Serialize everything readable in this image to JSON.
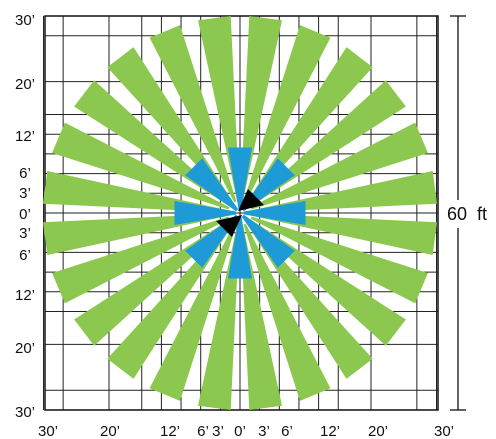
{
  "grid": {
    "x_tick_labels": [
      {
        "label": "30’",
        "offset_ft": -30
      },
      {
        "label": "20’",
        "offset_ft": -20
      },
      {
        "label": "12’",
        "offset_ft": -12
      },
      {
        "label": "6’",
        "offset_ft": -6
      },
      {
        "label": "3’",
        "offset_ft": -3
      },
      {
        "label": "0’",
        "offset_ft": 0
      },
      {
        "label": "3’",
        "offset_ft": 3
      },
      {
        "label": "6’",
        "offset_ft": 6
      },
      {
        "label": "12’",
        "offset_ft": 12
      },
      {
        "label": "20’",
        "offset_ft": 20
      },
      {
        "label": "30’",
        "offset_ft": 30
      }
    ],
    "y_tick_labels": [
      {
        "label": "30’",
        "offset_ft": 30
      },
      {
        "label": "20’",
        "offset_ft": 20
      },
      {
        "label": "12’",
        "offset_ft": 12
      },
      {
        "label": "6’",
        "offset_ft": 6
      },
      {
        "label": "3’",
        "offset_ft": 3
      },
      {
        "label": "0’",
        "offset_ft": 0
      },
      {
        "label": "3’",
        "offset_ft": -3
      },
      {
        "label": "6’",
        "offset_ft": -6
      },
      {
        "label": "12’",
        "offset_ft": -12
      },
      {
        "label": "20’",
        "offset_ft": -20
      },
      {
        "label": "30’",
        "offset_ft": -30
      }
    ]
  },
  "dimension": {
    "label": "60  ft",
    "span_ft": 60
  },
  "beams": {
    "outer": {
      "count": 24,
      "reach_ft": 30,
      "color": "#8cc850"
    },
    "inner": {
      "count": 8,
      "reach_ft": 10,
      "color": "#1e9ad6"
    },
    "center_marker_color": "#000000"
  }
}
